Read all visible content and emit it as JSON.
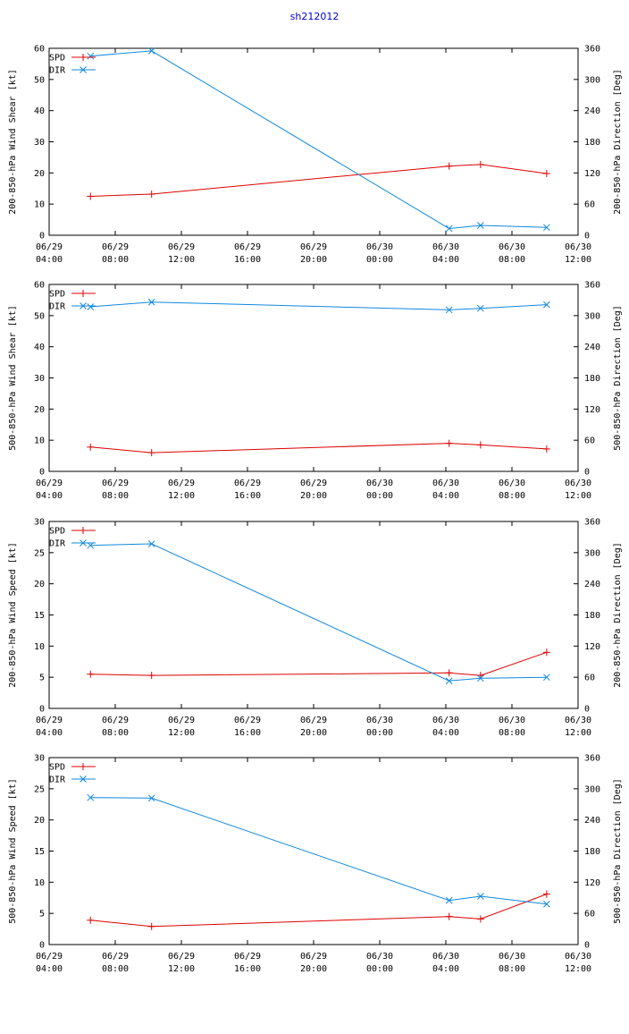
{
  "title": "sh212012",
  "colors": {
    "spd": "#dd0000",
    "dir": "#1188dd",
    "axis": "#000000"
  },
  "chart_data": [
    {
      "type": "line",
      "ylabel": "200-850-hPa Wind Shear [kt]",
      "y2label": "200-850-hPa Direction [Deg]",
      "ylim": [
        0,
        60
      ],
      "yticks": [
        0,
        10,
        20,
        30,
        40,
        50,
        60
      ],
      "y2lim": [
        0,
        360
      ],
      "y2ticks": [
        0,
        60,
        120,
        180,
        240,
        300,
        360
      ],
      "xlim": [
        0,
        32
      ],
      "xticks": [
        [
          0,
          "06/29",
          "04:00"
        ],
        [
          4,
          "06/29",
          "08:00"
        ],
        [
          8,
          "06/29",
          "12:00"
        ],
        [
          12,
          "06/29",
          "16:00"
        ],
        [
          16,
          "06/29",
          "20:00"
        ],
        [
          20,
          "06/30",
          "00:00"
        ],
        [
          24,
          "06/30",
          "04:00"
        ],
        [
          28,
          "06/30",
          "08:00"
        ],
        [
          32,
          "06/30",
          "12:00"
        ]
      ],
      "legend": [
        "SPD",
        "DIR"
      ],
      "series": [
        {
          "name": "SPD",
          "axis": "left",
          "x": [
            2.5,
            6.2,
            24.2,
            26.1,
            30.1
          ],
          "values": [
            12.5,
            13.2,
            22.2,
            22.7,
            19.8
          ]
        },
        {
          "name": "DIR",
          "axis": "right",
          "x": [
            2.5,
            6.2,
            24.2,
            26.1,
            30.1
          ],
          "values": [
            345,
            355,
            13,
            19,
            15
          ]
        }
      ]
    },
    {
      "type": "line",
      "ylabel": "500-850-hPa Wind Shear [kt]",
      "y2label": "500-850-hPa Direction [Deg]",
      "ylim": [
        0,
        60
      ],
      "yticks": [
        0,
        10,
        20,
        30,
        40,
        50,
        60
      ],
      "y2lim": [
        0,
        360
      ],
      "y2ticks": [
        0,
        60,
        120,
        180,
        240,
        300,
        360
      ],
      "xlim": [
        0,
        32
      ],
      "xticks": [
        [
          0,
          "06/29",
          "04:00"
        ],
        [
          4,
          "06/29",
          "08:00"
        ],
        [
          8,
          "06/29",
          "12:00"
        ],
        [
          12,
          "06/29",
          "16:00"
        ],
        [
          16,
          "06/29",
          "20:00"
        ],
        [
          20,
          "06/30",
          "00:00"
        ],
        [
          24,
          "06/30",
          "04:00"
        ],
        [
          28,
          "06/30",
          "08:00"
        ],
        [
          32,
          "06/30",
          "12:00"
        ]
      ],
      "legend": [
        "SPD",
        "DIR"
      ],
      "series": [
        {
          "name": "SPD",
          "axis": "left",
          "x": [
            2.5,
            6.2,
            24.2,
            26.1,
            30.1
          ],
          "values": [
            7.8,
            6.0,
            9.0,
            8.5,
            7.2
          ]
        },
        {
          "name": "DIR",
          "axis": "right",
          "x": [
            2.5,
            6.2,
            24.2,
            26.1,
            30.1
          ],
          "values": [
            317,
            326,
            311,
            314,
            321
          ]
        }
      ]
    },
    {
      "type": "line",
      "ylabel": "200-850-hPa Wind Speed [kt]",
      "y2label": "200-850-hPa Direction [Deg]",
      "ylim": [
        0,
        30
      ],
      "yticks": [
        0,
        5,
        10,
        15,
        20,
        25,
        30
      ],
      "y2lim": [
        0,
        360
      ],
      "y2ticks": [
        0,
        60,
        120,
        180,
        240,
        300,
        360
      ],
      "xlim": [
        0,
        32
      ],
      "xticks": [
        [
          0,
          "06/29",
          "04:00"
        ],
        [
          4,
          "06/29",
          "08:00"
        ],
        [
          8,
          "06/29",
          "12:00"
        ],
        [
          12,
          "06/29",
          "16:00"
        ],
        [
          16,
          "06/29",
          "20:00"
        ],
        [
          20,
          "06/30",
          "00:00"
        ],
        [
          24,
          "06/30",
          "04:00"
        ],
        [
          28,
          "06/30",
          "08:00"
        ],
        [
          32,
          "06/30",
          "12:00"
        ]
      ],
      "legend": [
        "SPD",
        "DIR"
      ],
      "series": [
        {
          "name": "SPD",
          "axis": "left",
          "x": [
            2.5,
            6.2,
            24.2,
            26.1,
            30.1
          ],
          "values": [
            5.5,
            5.3,
            5.7,
            5.3,
            9.0
          ]
        },
        {
          "name": "DIR",
          "axis": "right",
          "x": [
            2.5,
            6.2,
            24.2,
            26.1,
            30.1
          ],
          "values": [
            314,
            317,
            53,
            58,
            60
          ]
        }
      ]
    },
    {
      "type": "line",
      "ylabel": "500-850-hPa Wind Speed [kt]",
      "y2label": "500-850-hPa Direction [Deg]",
      "ylim": [
        0,
        30
      ],
      "yticks": [
        0,
        5,
        10,
        15,
        20,
        25,
        30
      ],
      "y2lim": [
        0,
        360
      ],
      "y2ticks": [
        0,
        60,
        120,
        180,
        240,
        300,
        360
      ],
      "xlim": [
        0,
        32
      ],
      "xticks": [
        [
          0,
          "06/29",
          "04:00"
        ],
        [
          4,
          "06/29",
          "08:00"
        ],
        [
          8,
          "06/29",
          "12:00"
        ],
        [
          12,
          "06/29",
          "16:00"
        ],
        [
          16,
          "06/29",
          "20:00"
        ],
        [
          20,
          "06/30",
          "00:00"
        ],
        [
          24,
          "06/30",
          "04:00"
        ],
        [
          28,
          "06/30",
          "08:00"
        ],
        [
          32,
          "06/30",
          "12:00"
        ]
      ],
      "legend": [
        "SPD",
        "DIR"
      ],
      "series": [
        {
          "name": "SPD",
          "axis": "left",
          "x": [
            2.5,
            6.2,
            24.2,
            26.1,
            30.1
          ],
          "values": [
            3.9,
            2.9,
            4.5,
            4.1,
            8.1
          ]
        },
        {
          "name": "DIR",
          "axis": "right",
          "x": [
            2.5,
            6.2,
            24.2,
            26.1,
            30.1
          ],
          "values": [
            283,
            282,
            85,
            93,
            78
          ]
        }
      ]
    }
  ]
}
